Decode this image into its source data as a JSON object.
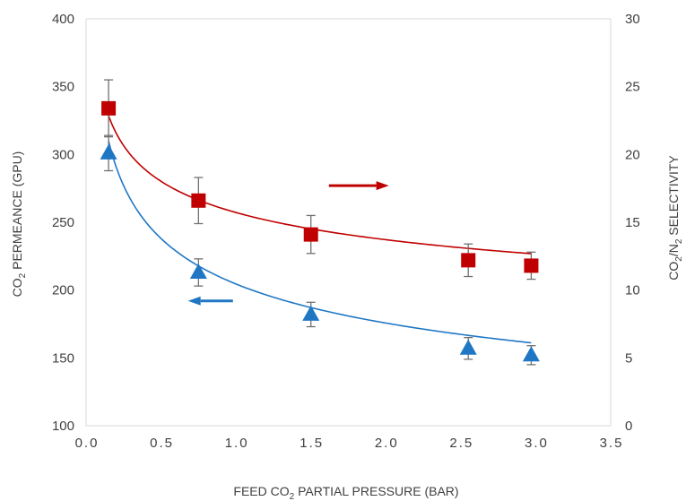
{
  "chart_data": {
    "type": "scatter",
    "title": "",
    "x": [
      0.15,
      0.75,
      1.5,
      2.55,
      2.97
    ],
    "xlim": [
      0.0,
      3.5
    ],
    "x_ticks": [
      "0.0",
      "0.5",
      "1.0",
      "1.5",
      "2.0",
      "2.5",
      "3.0",
      "3.5"
    ],
    "xlabel": {
      "pre": "FEED CO",
      "sub": "2",
      "post": " PARTIAL PRESSURE (BAR)"
    },
    "ylim_left": [
      100,
      400
    ],
    "y_ticks_left": [
      "100",
      "150",
      "200",
      "250",
      "300",
      "350",
      "400"
    ],
    "ylabel_left": {
      "pre": "CO",
      "sub": "2",
      "post": " PERMEANCE (GPU)"
    },
    "ylim_right": [
      0,
      30
    ],
    "y_ticks_right": [
      "0",
      "5",
      "10",
      "15",
      "20",
      "25",
      "30"
    ],
    "ylabel_right": {
      "pre": "CO",
      "sub1": "2",
      "mid": "/N",
      "sub2": "2",
      "post": " SELECTIVITY"
    },
    "grid": false,
    "legend": "none",
    "series": [
      {
        "axis": "left",
        "marker": "triangle",
        "color": "#1f77c4",
        "x": [
          0.15,
          0.75,
          1.5,
          2.55,
          2.97
        ],
        "values": [
          301,
          213,
          182,
          157,
          152
        ],
        "error": [
          13,
          10,
          9,
          8,
          7
        ],
        "fit": {
          "a": 204.5,
          "b": -0.219
        },
        "arrow": {
          "direction": "left",
          "x_from": 0.98,
          "x_to": 0.68,
          "y": 192
        }
      },
      {
        "axis": "right",
        "marker": "square",
        "color": "#c00000",
        "x": [
          0.15,
          0.75,
          1.5,
          2.55,
          2.97
        ],
        "values": [
          23.4,
          16.6,
          14.1,
          12.2,
          11.8
        ],
        "error": [
          2.1,
          1.7,
          1.4,
          1.2,
          1.0
        ],
        "fit": {
          "a": 15.72,
          "b": -0.197
        },
        "arrow": {
          "direction": "right",
          "x_from": 1.62,
          "x_to": 2.02,
          "y": 17.7
        }
      }
    ]
  }
}
